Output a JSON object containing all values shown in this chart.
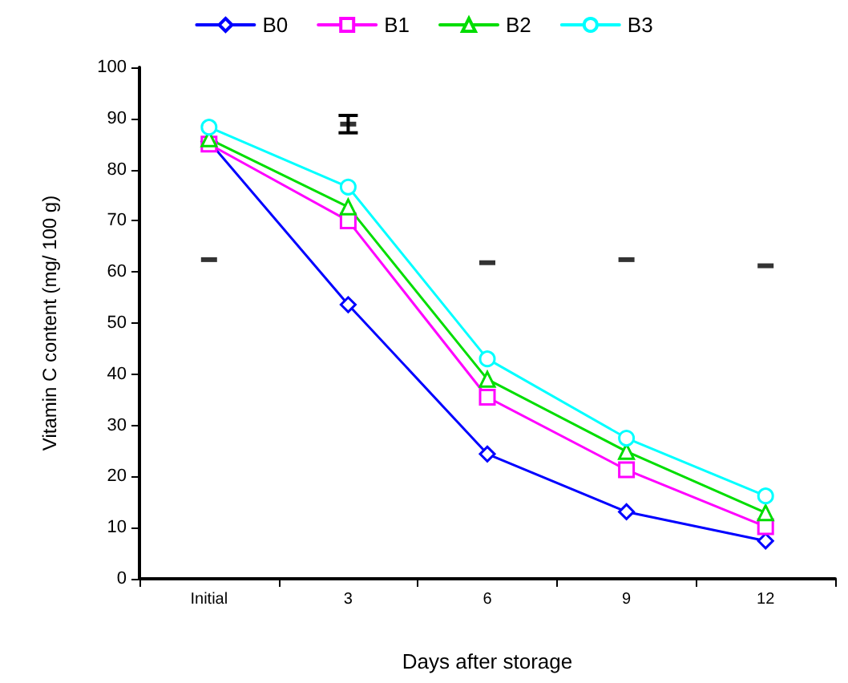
{
  "chart_data": {
    "type": "line",
    "xlabel": "Days after storage",
    "ylabel": "Vitamin C content (mg/ 100 g)",
    "categories": [
      "Initial",
      "3",
      "6",
      "9",
      "12"
    ],
    "series": [
      {
        "name": "B0",
        "color": "#0000ff",
        "marker": "diamond",
        "values": [
          85.5,
          53.6,
          24.4,
          13.1,
          7.4
        ]
      },
      {
        "name": "B1",
        "color": "#ff00ff",
        "marker": "square",
        "values": [
          85,
          70,
          35.5,
          21.3,
          10.2
        ]
      },
      {
        "name": "B2",
        "color": "#00dd00",
        "marker": "triangle",
        "values": [
          86,
          72.7,
          39,
          24.9,
          12.9
        ]
      },
      {
        "name": "B3",
        "color": "#00ffff",
        "marker": "circle",
        "values": [
          88.3,
          76.6,
          43,
          27.5,
          16.2
        ]
      },
      {
        "type": "scatter",
        "color": "#000000",
        "values": [
          62.4,
          88.9,
          61.8,
          62.4,
          61.2
        ],
        "errors": [
          null,
          1.7,
          null,
          null,
          null
        ]
      }
    ],
    "ylim": [
      0,
      100
    ],
    "yticks": [
      0,
      10,
      20,
      30,
      40,
      50,
      60,
      70,
      80,
      90,
      100
    ],
    "grid": false,
    "legend": "top",
    "line_style": "solid"
  }
}
